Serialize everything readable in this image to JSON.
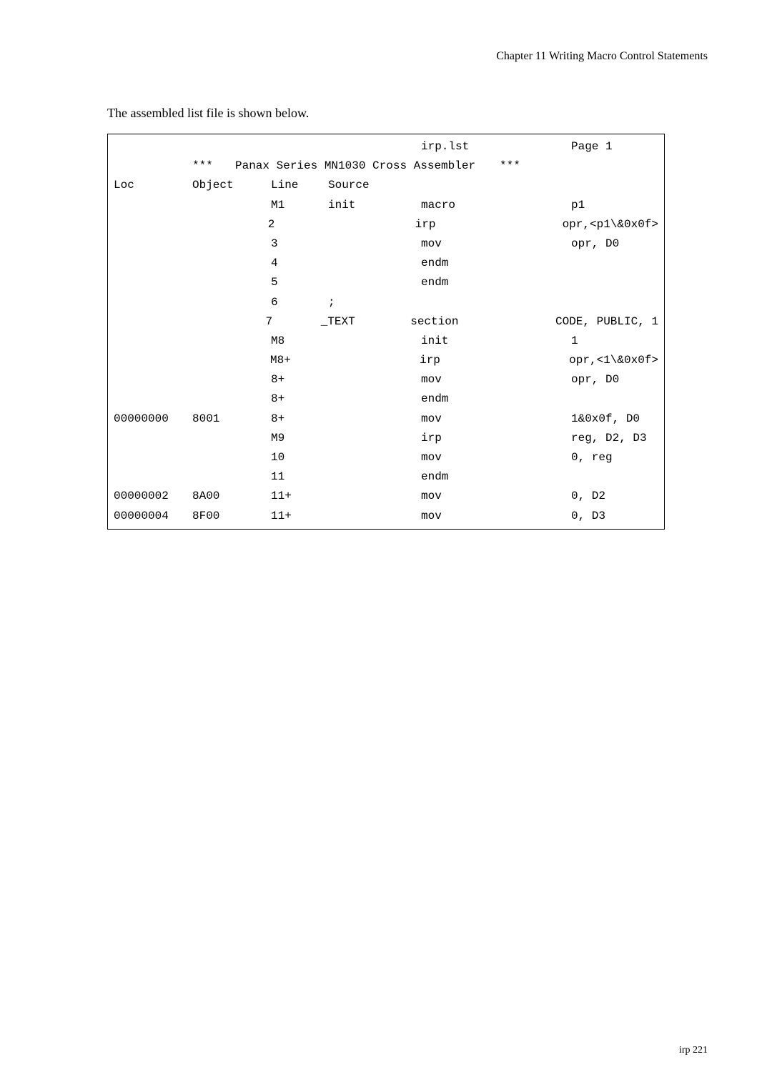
{
  "header": {
    "chapter": "Chapter 11   Writing Macro Control Statements"
  },
  "intro": "The assembled list file is shown below.",
  "listing": {
    "top_file": "irp.lst",
    "top_page": "Page 1",
    "banner_stars_l": "***",
    "banner_mid": "Panax Series MN1030 Cross Assembler",
    "banner_stars_r": "***",
    "cols": {
      "loc": "Loc",
      "object": "Object",
      "line": "Line",
      "source": "Source"
    },
    "rows": [
      {
        "loc": "",
        "obj": "",
        "line": "M1",
        "src": "init",
        "mid": "macro",
        "right": "p1"
      },
      {
        "loc": "",
        "obj": "",
        "line": "2",
        "src": "",
        "mid": "irp",
        "right": "opr,<p1\\&0x0f>"
      },
      {
        "loc": "",
        "obj": "",
        "line": "3",
        "src": "",
        "mid": "mov",
        "right": "opr, D0"
      },
      {
        "loc": "",
        "obj": "",
        "line": "4",
        "src": "",
        "mid": "endm",
        "right": ""
      },
      {
        "loc": "",
        "obj": "",
        "line": "5",
        "src": "",
        "mid": "endm",
        "right": ""
      },
      {
        "loc": "",
        "obj": "",
        "line": "6",
        "src": ";",
        "mid": "",
        "right": ""
      },
      {
        "loc": "",
        "obj": "",
        "line": "7",
        "src": "_TEXT",
        "mid": "section",
        "right": "CODE, PUBLIC, 1"
      },
      {
        "loc": "",
        "obj": "",
        "line": "M8",
        "src": "",
        "mid": "init",
        "right": "1"
      },
      {
        "loc": "",
        "obj": "",
        "line": "M8+",
        "src": "",
        "mid": "irp",
        "right": "opr,<1\\&0x0f>"
      },
      {
        "loc": "",
        "obj": "",
        "line": "8+",
        "src": "",
        "mid": "mov",
        "right": "opr, D0"
      },
      {
        "loc": "",
        "obj": "",
        "line": "8+",
        "src": "",
        "mid": "endm",
        "right": ""
      },
      {
        "loc": "00000000",
        "obj": "8001",
        "line": "8+",
        "src": "",
        "mid": "mov",
        "right": "1&0x0f, D0"
      },
      {
        "loc": "",
        "obj": "",
        "line": "M9",
        "src": "",
        "mid": "irp",
        "right": "reg, D2, D3"
      },
      {
        "loc": "",
        "obj": "",
        "line": "10",
        "src": "",
        "mid": "mov",
        "right": "0, reg"
      },
      {
        "loc": "",
        "obj": "",
        "line": "11",
        "src": "",
        "mid": "endm",
        "right": ""
      },
      {
        "loc": "00000002",
        "obj": "8A00",
        "line": "11+",
        "src": "",
        "mid": "mov",
        "right": "0, D2"
      },
      {
        "loc": "00000004",
        "obj": "8F00",
        "line": "11+",
        "src": "",
        "mid": "mov",
        "right": "0, D3"
      }
    ]
  },
  "footer": {
    "label": "irp",
    "page": "221"
  }
}
